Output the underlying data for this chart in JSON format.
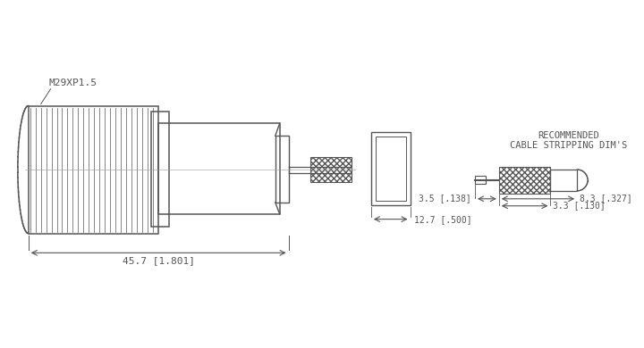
{
  "bg_color": "#ffffff",
  "line_color": "#555555",
  "main_label": "M29XP1.5",
  "dim_45_7": "45.7 [1.801]",
  "dim_12_7": "12.7 [.500]",
  "dim_3_5": "3.5 [.138]",
  "dim_3_3": "3.3 [.130]",
  "dim_8_3": "8.3 [.327]",
  "cable_label_1": "RECOMMENDED",
  "cable_label_2": "CABLE STRIPPING DIM'S"
}
